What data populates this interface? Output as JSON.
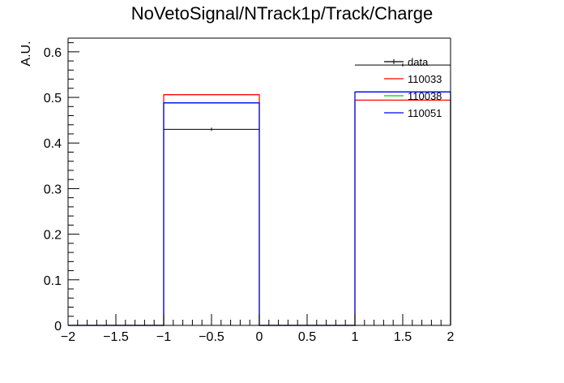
{
  "chart_data": {
    "type": "histogram",
    "title": "NoVetoSignal/NTrack1p/Track/Charge",
    "xlabel": "",
    "ylabel": "A.U.",
    "xlim": [
      -2,
      2
    ],
    "ylim": [
      0,
      0.63
    ],
    "x_ticks": [
      "−2",
      "−1.5",
      "−1",
      "−0.5",
      "0",
      "0.5",
      "1",
      "1.5",
      "2"
    ],
    "x_tick_values": [
      -2,
      -1.5,
      -1,
      -0.5,
      0,
      0.5,
      1,
      1.5,
      2
    ],
    "y_ticks": [
      "0",
      "0.1",
      "0.2",
      "0.3",
      "0.4",
      "0.5",
      "0.6"
    ],
    "y_tick_values": [
      0,
      0.1,
      0.2,
      0.3,
      0.4,
      0.5,
      0.6
    ],
    "bin_edges": [
      -2,
      -1,
      0,
      1,
      2
    ],
    "legend_position": "top-right",
    "series": [
      {
        "name": "data",
        "color": "#000000",
        "values": [
          0,
          0.43,
          0,
          0.571
        ],
        "style": "markers"
      },
      {
        "name": "110033",
        "color": "#ff0000",
        "values": [
          0,
          0.506,
          0,
          0.494
        ],
        "style": "step"
      },
      {
        "name": "110038",
        "color": "#00cc00",
        "values": [
          0,
          0.488,
          0,
          0.512
        ],
        "style": "step"
      },
      {
        "name": "110051",
        "color": "#0000ff",
        "values": [
          0,
          0.488,
          0,
          0.512
        ],
        "style": "step"
      }
    ]
  }
}
